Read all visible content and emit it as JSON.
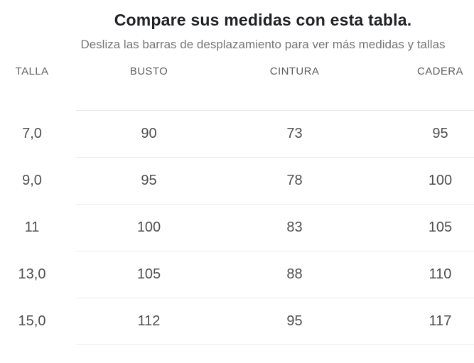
{
  "header": {
    "title": "Compare sus medidas con esta tabla.",
    "subtitle": "Desliza las barras de desplazamiento para ver más medidas y tallas"
  },
  "table": {
    "fixed_column_header": "TALLA",
    "scroll_column_headers": [
      "BUSTO",
      "CINTURA",
      "CADERA"
    ],
    "rows": [
      {
        "talla": "7,0",
        "busto": "90",
        "cintura": "73",
        "cadera": "95"
      },
      {
        "talla": "9,0",
        "busto": "95",
        "cintura": "78",
        "cadera": "100"
      },
      {
        "talla": "11",
        "busto": "100",
        "cintura": "83",
        "cadera": "105"
      },
      {
        "talla": "13,0",
        "busto": "105",
        "cintura": "88",
        "cadera": "110"
      },
      {
        "talla": "15,0",
        "busto": "112",
        "cintura": "95",
        "cadera": "117"
      }
    ]
  },
  "colors": {
    "title": "#202124",
    "subtitle": "#757575",
    "header-text": "#5f5f5f",
    "cell-text": "#4e4e4e",
    "row-border": "#ebebeb",
    "background": "#ffffff"
  }
}
